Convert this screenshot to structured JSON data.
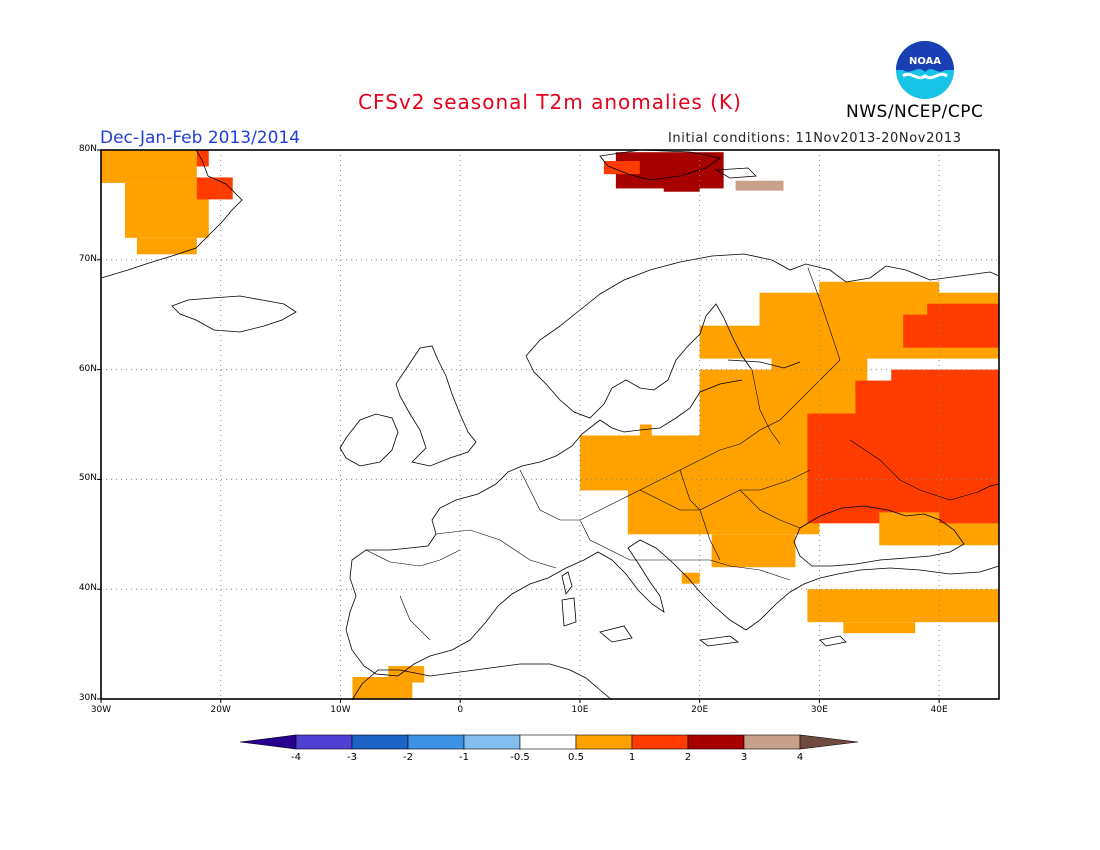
{
  "header": {
    "title": "CFSv2 seasonal T2m anomalies (K)",
    "season": "Dec-Jan-Feb 2013/2014",
    "agency": "NWS/NCEP/CPC",
    "initial_conditions": "Initial conditions: 11Nov2013-20Nov2013",
    "logo_text": "NOAA"
  },
  "map": {
    "lon_range": [
      -30,
      45
    ],
    "lat_range": [
      30,
      80
    ],
    "lat_labels": [
      "80N",
      "70N",
      "60N",
      "50N",
      "40N",
      "30N"
    ],
    "lon_labels": [
      "30W",
      "20W",
      "10W",
      "0",
      "10E",
      "20E",
      "30E",
      "40E"
    ],
    "grid": true
  },
  "colorbar": {
    "labels": [
      "-4",
      "-3",
      "-2",
      "-1",
      "-0.5",
      "0.5",
      "1",
      "2",
      "3",
      "4"
    ],
    "colors": [
      "#27008f",
      "#4f3fd2",
      "#1d63c7",
      "#3d92e6",
      "#84bdf0",
      "#ffffff",
      "#ffa200",
      "#ff3c00",
      "#a60000",
      "#c9a08a",
      "#704a3e"
    ]
  },
  "colors": {
    "orange": "#ffa200",
    "red": "#ff3c00",
    "darkred": "#a60000",
    "tan": "#c9a08a"
  }
}
